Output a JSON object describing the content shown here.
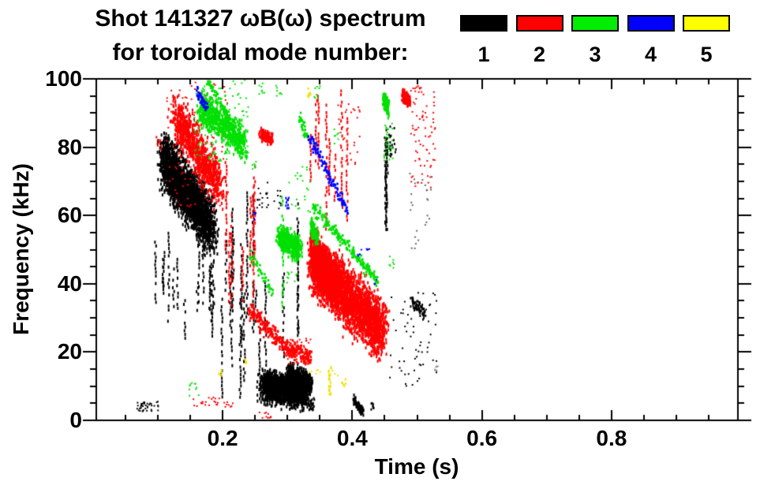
{
  "header": {
    "title": "Shot 141327 ωB(ω) spectrum",
    "subtitle": "for toroidal mode number:"
  },
  "legend": {
    "items": [
      {
        "label": "1",
        "color": "#000000"
      },
      {
        "label": "2",
        "color": "#ff0000"
      },
      {
        "label": "3",
        "color": "#00ef00"
      },
      {
        "label": "4",
        "color": "#0000ff"
      },
      {
        "label": "5",
        "color": "#ffff00"
      }
    ]
  },
  "chart_data": {
    "type": "scatter",
    "title": "Shot 141327 ωB(ω) spectrum",
    "subtitle": "for toroidal mode number:",
    "xlabel": "Time (s)",
    "ylabel": "Frequency (kHz)",
    "xlim": [
      0.005,
      0.995
    ],
    "ylim": [
      0,
      100
    ],
    "x_major_ticks": [
      0.2,
      0.4,
      0.6,
      0.8
    ],
    "x_tick_labels": [
      "0.2",
      "0.4",
      "0.6",
      "0.8"
    ],
    "x_minor_step": 0.05,
    "y_major_ticks": [
      0,
      20,
      40,
      60,
      80,
      100
    ],
    "y_tick_labels": [
      "0",
      "20",
      "40",
      "60",
      "80",
      "100"
    ],
    "y_minor_step": 5,
    "grid": false,
    "legend_position": "top-right",
    "mode_colors": {
      "1": "#000000",
      "2": "#ff0000",
      "3": "#00e000",
      "4": "#0000ff",
      "5": "#f2e000"
    },
    "clusters": [
      {
        "mode": 1,
        "kind": "band",
        "from": [
          0.108,
          77
        ],
        "to": [
          0.185,
          56
        ],
        "spread": 10,
        "tspread": 0.012,
        "n": 2200
      },
      {
        "mode": 1,
        "kind": "band",
        "from": [
          0.118,
          71
        ],
        "to": [
          0.168,
          62
        ],
        "spread": 5,
        "tspread": 0.008,
        "n": 1400
      },
      {
        "mode": 1,
        "kind": "vlines",
        "t": [
          0.096,
          0.188
        ],
        "f": [
          22,
          56
        ],
        "lines": 15,
        "span": [
          8,
          24
        ]
      },
      {
        "mode": 1,
        "kind": "vlines",
        "t": [
          0.19,
          0.33
        ],
        "f": [
          5,
          68
        ],
        "lines": 17,
        "span": [
          10,
          42
        ]
      },
      {
        "mode": 1,
        "kind": "band",
        "from": [
          0.262,
          10
        ],
        "to": [
          0.33,
          8
        ],
        "spread": 5.5,
        "tspread": 0.01,
        "n": 1700,
        "fclamp": [
          0.8,
          20
        ]
      },
      {
        "mode": 1,
        "kind": "band",
        "from": [
          0.3,
          14
        ],
        "to": [
          0.337,
          11
        ],
        "spread": 3.5,
        "tspread": 0.004,
        "n": 450,
        "fclamp": [
          0.8,
          22
        ]
      },
      {
        "mode": 1,
        "kind": "box",
        "t": [
          0.333,
          0.343
        ],
        "f": [
          3,
          6.5
        ],
        "n": 22
      },
      {
        "mode": 1,
        "kind": "band",
        "from": [
          0.402,
          6
        ],
        "to": [
          0.416,
          2.5
        ],
        "spread": 1.4,
        "tspread": 0.002,
        "n": 110
      },
      {
        "mode": 1,
        "kind": "box",
        "t": [
          0.428,
          0.433
        ],
        "f": [
          3,
          5
        ],
        "n": 8
      },
      {
        "mode": 1,
        "kind": "box",
        "t": [
          0.068,
          0.103
        ],
        "f": [
          2.5,
          5.5
        ],
        "n": 40,
        "dot": [
          2,
          2
        ]
      },
      {
        "mode": 1,
        "kind": "vlines",
        "t": [
          0.447,
          0.456
        ],
        "f": [
          55,
          84
        ],
        "lines": 3,
        "span": [
          20,
          29
        ]
      },
      {
        "mode": 1,
        "kind": "box",
        "t": [
          0.449,
          0.468
        ],
        "f": [
          77,
          86
        ],
        "n": 26
      },
      {
        "mode": 1,
        "kind": "box",
        "t": [
          0.458,
          0.53
        ],
        "f": [
          10,
          38
        ],
        "n": 60,
        "dot": [
          2,
          2
        ]
      },
      {
        "mode": 1,
        "kind": "band",
        "from": [
          0.492,
          35
        ],
        "to": [
          0.512,
          31
        ],
        "spread": 2.5,
        "tspread": 0.004,
        "n": 70,
        "dot": [
          2,
          2
        ]
      },
      {
        "mode": 1,
        "kind": "box",
        "t": [
          0.488,
          0.523
        ],
        "f": [
          50,
          73
        ],
        "n": 26,
        "color": "#666666",
        "dot": [
          2,
          2
        ]
      },
      {
        "mode": 1,
        "kind": "box",
        "t": [
          0.253,
          0.29
        ],
        "f": [
          62,
          72
        ],
        "n": 26,
        "dot": [
          2,
          2
        ]
      },
      {
        "mode": 1,
        "kind": "box",
        "t": [
          0.527,
          0.535
        ],
        "f": [
          13,
          16
        ],
        "n": 6,
        "color": "#888888",
        "dot": [
          2,
          2
        ]
      },
      {
        "mode": 2,
        "kind": "band",
        "from": [
          0.127,
          89
        ],
        "to": [
          0.196,
          68
        ],
        "spread": 8,
        "tspread": 0.012,
        "n": 900
      },
      {
        "mode": 2,
        "kind": "box",
        "t": [
          0.112,
          0.21
        ],
        "f": [
          62,
          99
        ],
        "n": 130,
        "dot": [
          2,
          2
        ]
      },
      {
        "mode": 2,
        "kind": "box",
        "t": [
          0.097,
          0.106
        ],
        "f": [
          79,
          83
        ],
        "n": 8
      },
      {
        "mode": 2,
        "kind": "vlines",
        "t": [
          0.205,
          0.25
        ],
        "f": [
          28,
          78
        ],
        "lines": 7,
        "span": [
          14,
          40
        ]
      },
      {
        "mode": 2,
        "kind": "band",
        "from": [
          0.257,
          84
        ],
        "to": [
          0.277,
          82
        ],
        "spread": 2,
        "tspread": 0.003,
        "n": 150
      },
      {
        "mode": 2,
        "kind": "track",
        "from": [
          0.241,
          32.5
        ],
        "to": [
          0.296,
          21.5
        ],
        "width": 3.5,
        "n": 240
      },
      {
        "mode": 2,
        "kind": "track",
        "from": [
          0.296,
          21
        ],
        "to": [
          0.336,
          18.5
        ],
        "width": 3,
        "n": 190
      },
      {
        "mode": 2,
        "kind": "box",
        "t": [
          0.3,
          0.337
        ],
        "f": [
          16.5,
          24
        ],
        "n": 60,
        "dot": [
          2,
          2
        ]
      },
      {
        "mode": 2,
        "kind": "band",
        "from": [
          0.34,
          46
        ],
        "to": [
          0.447,
          26
        ],
        "spread": 10,
        "tspread": 0.014,
        "n": 3000,
        "fclamp": [
          17,
          62
        ]
      },
      {
        "mode": 2,
        "kind": "band",
        "from": [
          0.337,
          50
        ],
        "to": [
          0.378,
          38
        ],
        "spread": 8,
        "tspread": 0.007,
        "n": 1100,
        "fclamp": [
          15,
          60
        ]
      },
      {
        "mode": 2,
        "kind": "vlines",
        "t": [
          0.334,
          0.392
        ],
        "f": [
          55,
          97
        ],
        "lines": 9,
        "span": [
          10,
          38
        ]
      },
      {
        "mode": 2,
        "kind": "box",
        "t": [
          0.378,
          0.412
        ],
        "f": [
          74,
          93
        ],
        "n": 30,
        "dot": [
          2,
          2
        ]
      },
      {
        "mode": 2,
        "kind": "band",
        "from": [
          0.478,
          95.5
        ],
        "to": [
          0.489,
          93.5
        ],
        "spread": 2.3,
        "tspread": 0.003,
        "n": 120
      },
      {
        "mode": 2,
        "kind": "box",
        "t": [
          0.49,
          0.528
        ],
        "f": [
          68,
          98
        ],
        "n": 80,
        "dot": [
          2,
          2
        ]
      },
      {
        "mode": 2,
        "kind": "box",
        "t": [
          0.148,
          0.196
        ],
        "f": [
          4,
          7
        ],
        "n": 20,
        "dot": [
          2,
          2
        ]
      },
      {
        "mode": 2,
        "kind": "box",
        "t": [
          0.2,
          0.216
        ],
        "f": [
          3.5,
          6
        ],
        "n": 8,
        "dot": [
          2,
          2
        ]
      },
      {
        "mode": 2,
        "kind": "box",
        "t": [
          0.255,
          0.278
        ],
        "f": [
          0.7,
          2.5
        ],
        "n": 10,
        "dot": [
          2,
          2
        ]
      },
      {
        "mode": 3,
        "kind": "band",
        "from": [
          0.166,
          92
        ],
        "to": [
          0.232,
          81
        ],
        "spread": 6,
        "tspread": 0.01,
        "n": 700
      },
      {
        "mode": 3,
        "kind": "track",
        "from": [
          0.176,
          100
        ],
        "to": [
          0.212,
          88
        ],
        "width": 2,
        "n": 90
      },
      {
        "mode": 3,
        "kind": "box",
        "t": [
          0.155,
          0.24
        ],
        "f": [
          76,
          100
        ],
        "n": 110,
        "dot": [
          2,
          2
        ]
      },
      {
        "mode": 3,
        "kind": "box",
        "t": [
          0.148,
          0.163
        ],
        "f": [
          7,
          11
        ],
        "n": 10,
        "dot": [
          2,
          2
        ]
      },
      {
        "mode": 3,
        "kind": "box",
        "t": [
          0.255,
          0.266
        ],
        "f": [
          95.5,
          99
        ],
        "n": 8,
        "dot": [
          2,
          2
        ]
      },
      {
        "mode": 3,
        "kind": "track",
        "from": [
          0.318,
          89
        ],
        "to": [
          0.331,
          83
        ],
        "width": 2.2,
        "n": 45
      },
      {
        "mode": 3,
        "kind": "box",
        "t": [
          0.282,
          0.291
        ],
        "f": [
          95,
          98
        ],
        "n": 7,
        "dot": [
          2,
          2
        ]
      },
      {
        "mode": 3,
        "kind": "band",
        "from": [
          0.288,
          53.5
        ],
        "to": [
          0.318,
          50
        ],
        "spread": 4.2,
        "tspread": 0.008,
        "n": 520
      },
      {
        "mode": 3,
        "kind": "vlines",
        "t": [
          0.292,
          0.296
        ],
        "f": [
          33,
          66
        ],
        "lines": 1,
        "span": [
          30,
          33
        ]
      },
      {
        "mode": 3,
        "kind": "track",
        "from": [
          0.242,
          49
        ],
        "to": [
          0.277,
          37.5
        ],
        "width": 2,
        "n": 55
      },
      {
        "mode": 3,
        "kind": "band",
        "from": [
          0.336,
          57
        ],
        "to": [
          0.347,
          53
        ],
        "spread": 3,
        "tspread": 0.003,
        "n": 90
      },
      {
        "mode": 3,
        "kind": "track",
        "from": [
          0.338,
          63
        ],
        "to": [
          0.44,
          40.5
        ],
        "width": 2.6,
        "n": 270
      },
      {
        "mode": 3,
        "kind": "band",
        "from": [
          0.448,
          94
        ],
        "to": [
          0.456,
          91.5
        ],
        "spread": 3.5,
        "tspread": 0.002,
        "n": 90
      },
      {
        "mode": 3,
        "kind": "box",
        "t": [
          0.449,
          0.463
        ],
        "f": [
          76,
          87
        ],
        "n": 30,
        "dot": [
          2,
          2
        ]
      },
      {
        "mode": 3,
        "kind": "box",
        "t": [
          0.457,
          0.465
        ],
        "f": [
          44,
          48
        ],
        "n": 7,
        "dot": [
          2,
          2
        ]
      },
      {
        "mode": 3,
        "kind": "box",
        "t": [
          0.3,
          0.335
        ],
        "f": [
          60,
          75
        ],
        "n": 22,
        "dot": [
          2,
          2
        ]
      },
      {
        "mode": 3,
        "kind": "box",
        "t": [
          0.34,
          0.352
        ],
        "f": [
          94,
          99
        ],
        "n": 8,
        "dot": [
          2,
          2
        ]
      },
      {
        "mode": 3,
        "kind": "box",
        "t": [
          0.371,
          0.379
        ],
        "f": [
          81,
          86
        ],
        "n": 7,
        "dot": [
          2,
          2
        ]
      },
      {
        "mode": 3,
        "kind": "box",
        "t": [
          0.296,
          0.322
        ],
        "f": [
          40,
          44
        ],
        "n": 10,
        "dot": [
          2,
          2
        ]
      },
      {
        "mode": 3,
        "kind": "box",
        "t": [
          0.246,
          0.252
        ],
        "f": [
          73,
          77
        ],
        "n": 6,
        "dot": [
          2,
          2
        ]
      },
      {
        "mode": 4,
        "kind": "track",
        "from": [
          0.16,
          96.5
        ],
        "to": [
          0.177,
          91.5
        ],
        "width": 2.5,
        "n": 50
      },
      {
        "mode": 4,
        "kind": "track",
        "from": [
          0.334,
          83
        ],
        "to": [
          0.392,
          61.5
        ],
        "width": 2.4,
        "n": 150
      },
      {
        "mode": 4,
        "kind": "box",
        "t": [
          0.296,
          0.303
        ],
        "f": [
          62,
          66
        ],
        "n": 9
      },
      {
        "mode": 4,
        "kind": "box",
        "t": [
          0.248,
          0.253
        ],
        "f": [
          58.5,
          61.5
        ],
        "n": 6,
        "dot": [
          2,
          2
        ]
      },
      {
        "mode": 4,
        "kind": "box",
        "t": [
          0.408,
          0.414
        ],
        "f": [
          47,
          50
        ],
        "n": 5,
        "dot": [
          2,
          2
        ]
      },
      {
        "mode": 4,
        "kind": "box",
        "t": [
          0.422,
          0.427
        ],
        "f": [
          49,
          51.5
        ],
        "n": 4,
        "dot": [
          2,
          2
        ]
      },
      {
        "mode": 4,
        "kind": "box",
        "t": [
          0.434,
          0.438
        ],
        "f": [
          39.5,
          41.5
        ],
        "n": 4,
        "dot": [
          2,
          2
        ]
      },
      {
        "mode": 5,
        "kind": "box",
        "t": [
          0.331,
          0.337
        ],
        "f": [
          94.5,
          97.5
        ],
        "n": 8
      },
      {
        "mode": 5,
        "kind": "vlines",
        "t": [
          0.357,
          0.368
        ],
        "f": [
          7,
          17
        ],
        "lines": 2,
        "span": [
          6,
          9
        ]
      },
      {
        "mode": 5,
        "kind": "box",
        "t": [
          0.384,
          0.39
        ],
        "f": [
          9,
          12.5
        ],
        "n": 6
      },
      {
        "mode": 5,
        "kind": "box",
        "t": [
          0.194,
          0.199
        ],
        "f": [
          13,
          15
        ],
        "n": 5
      },
      {
        "mode": 5,
        "kind": "box",
        "t": [
          0.234,
          0.239
        ],
        "f": [
          16.5,
          18
        ],
        "n": 4
      },
      {
        "mode": 5,
        "kind": "box",
        "t": [
          0.333,
          0.352
        ],
        "f": [
          13,
          15
        ],
        "n": 6,
        "dot": [
          2,
          2
        ]
      },
      {
        "mode": 5,
        "kind": "box",
        "t": [
          0.363,
          0.378
        ],
        "f": [
          13,
          15.5
        ],
        "n": 5,
        "dot": [
          2,
          2
        ]
      }
    ]
  }
}
